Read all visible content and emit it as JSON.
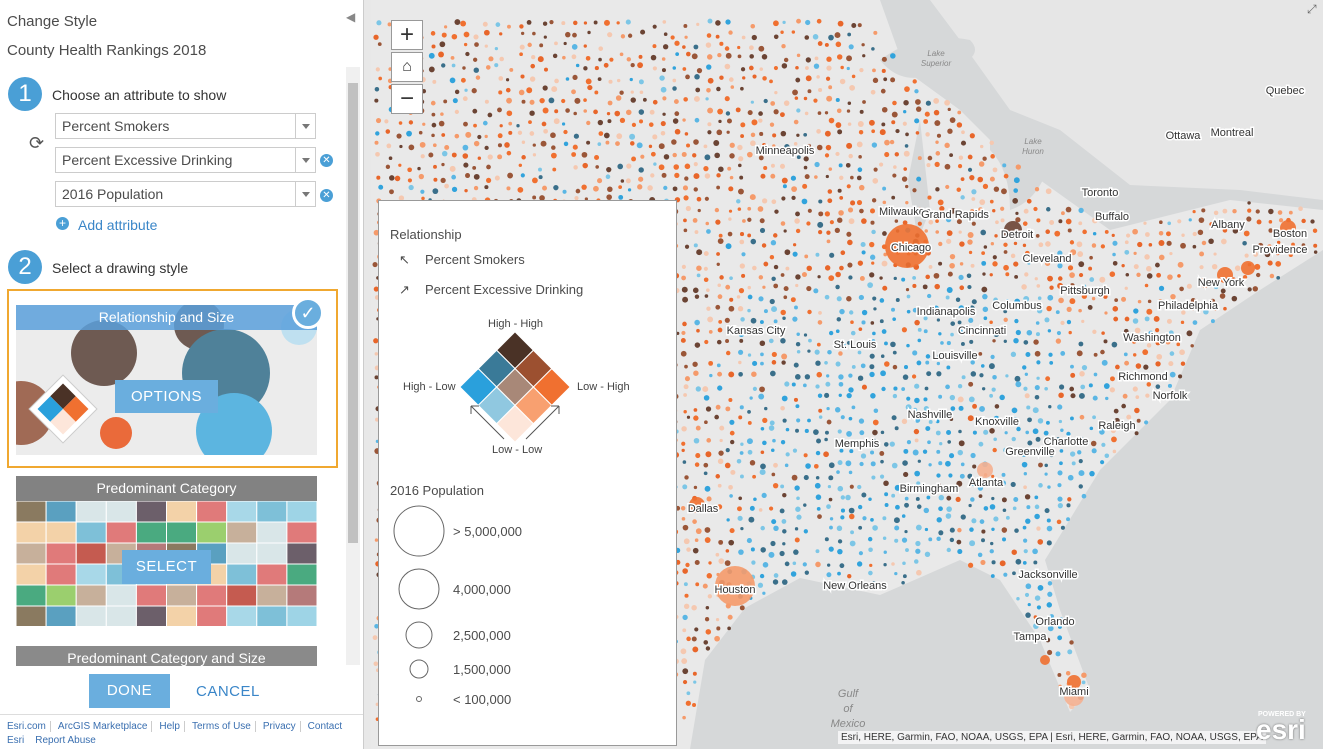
{
  "panel": {
    "title": "Change Style",
    "subtitle": "County Health Rankings 2018",
    "step1": {
      "number": "1",
      "label": "Choose an attribute to show",
      "attributes": [
        "Percent Smokers",
        "Percent Excessive Drinking",
        "2016 Population"
      ],
      "add": "Add attribute"
    },
    "step2": {
      "number": "2",
      "label": "Select a drawing style",
      "styles": [
        {
          "title": "Relationship and Size",
          "button": "OPTIONS"
        },
        {
          "title": "Predominant Category",
          "button": "SELECT"
        },
        {
          "title": "Predominant Category and Size"
        }
      ]
    },
    "buttons": {
      "done": "DONE",
      "cancel": "CANCEL"
    },
    "footer": [
      "Esri.com",
      "ArcGIS Marketplace",
      "Help",
      "Terms of Use",
      "Privacy",
      "Contact Esri",
      "Report Abuse"
    ]
  },
  "map": {
    "zoom_in": "+",
    "zoom_out": "−",
    "lakes": [
      [
        "Lake",
        "Superior"
      ],
      [
        "Lake",
        "Huron"
      ]
    ],
    "cities": [
      "Quebec",
      "Ottawa",
      "Montreal",
      "Minneapolis",
      "Toronto",
      "Buffalo",
      "Albany",
      "Milwaukee",
      "Grand Rapids",
      "Detroit",
      "Boston",
      "Chicago",
      "Providence",
      "Cleveland",
      "New York",
      "Pittsburgh",
      "Columbus",
      "Philadelphia",
      "Kansas City",
      "Indianapolis",
      "Cincinnati",
      "Washington",
      "St. Louis",
      "Louisville",
      "Richmond",
      "Norfolk",
      "Nashville",
      "Knoxville",
      "Raleigh",
      "Memphis",
      "Charlotte",
      "Greenville",
      "Atlanta",
      "Birmingham",
      "Dallas",
      "Jacksonville",
      "New Orleans",
      "Houston",
      "Orlando",
      "Tampa",
      "Miami"
    ],
    "gulf": [
      "Gulf",
      "of",
      "Mexico"
    ],
    "attribution": "Esri, HERE, Garmin, FAO, NOAA, USGS, EPA | Esri, HERE, Garmin, FAO, NOAA, USGS, EPA",
    "powered_by": "POWERED BY",
    "brand": "esri"
  },
  "legend": {
    "relationship_title": "Relationship",
    "axes": [
      "Percent Smokers",
      "Percent Excessive Drinking"
    ],
    "corners": {
      "top": "High - High",
      "left": "High - Low",
      "right": "Low - High",
      "bottom": "Low - Low"
    },
    "size_title": "2016 Population",
    "sizes": [
      "> 5,000,000",
      "4,000,000",
      "2,500,000",
      "1,500,000",
      "< 100,000"
    ]
  }
}
